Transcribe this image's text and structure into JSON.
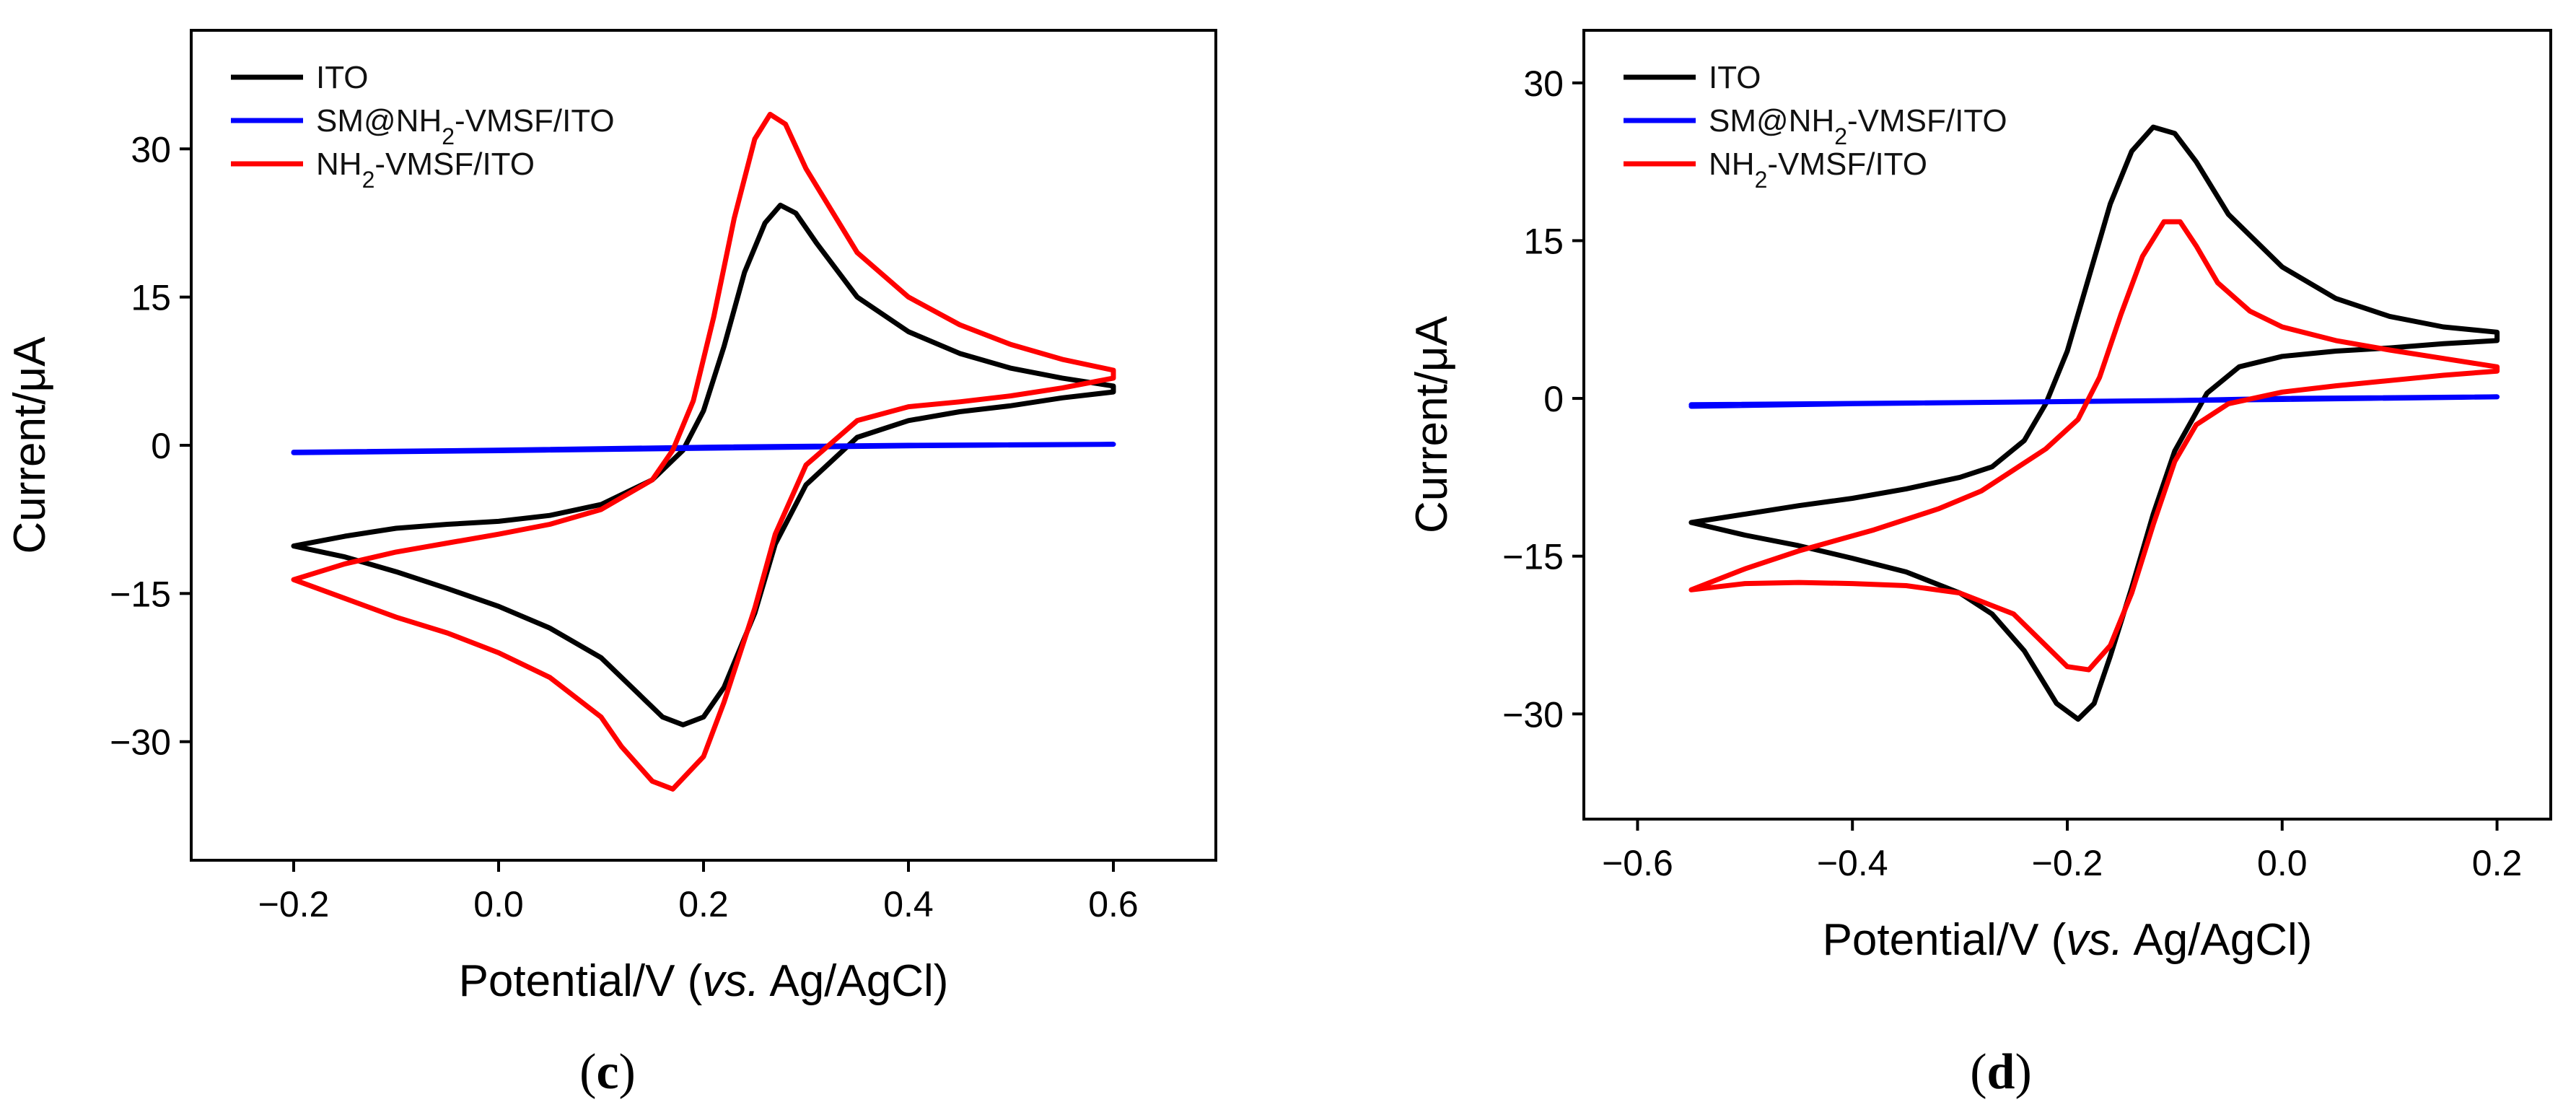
{
  "chart_data": [
    {
      "type": "line",
      "panel_label": "c",
      "xlabel_main": "Potential/V (",
      "xlabel_italic": "vs.",
      "xlabel_tail": " Ag/AgCl)",
      "ylabel": "Current/μA",
      "xlim": [
        -0.3,
        0.7
      ],
      "ylim": [
        -42,
        42
      ],
      "xticks": [
        -0.2,
        0.0,
        0.2,
        0.4,
        0.6
      ],
      "xtick_labels": [
        "−0.2",
        "0.0",
        "0.2",
        "0.4",
        "0.6"
      ],
      "yticks": [
        -30,
        -15,
        0,
        15,
        30
      ],
      "ytick_labels": [
        "−30",
        "−15",
        "0",
        "15",
        "30"
      ],
      "legend_position": "top-left",
      "series": [
        {
          "name": "ITO",
          "name_parts": [
            {
              "t": "ITO"
            }
          ],
          "color": "#000000",
          "points": [
            [
              -0.2,
              -10.2
            ],
            [
              -0.15,
              -9.2
            ],
            [
              -0.1,
              -8.4
            ],
            [
              -0.05,
              -8.0
            ],
            [
              0.0,
              -7.7
            ],
            [
              0.05,
              -7.1
            ],
            [
              0.1,
              -6.0
            ],
            [
              0.15,
              -3.5
            ],
            [
              0.18,
              -0.5
            ],
            [
              0.2,
              3.5
            ],
            [
              0.22,
              10.0
            ],
            [
              0.24,
              17.5
            ],
            [
              0.26,
              22.5
            ],
            [
              0.275,
              24.3
            ],
            [
              0.29,
              23.5
            ],
            [
              0.31,
              20.5
            ],
            [
              0.35,
              15.0
            ],
            [
              0.4,
              11.5
            ],
            [
              0.45,
              9.3
            ],
            [
              0.5,
              7.8
            ],
            [
              0.55,
              6.8
            ],
            [
              0.6,
              6.0
            ],
            [
              0.6,
              5.4
            ],
            [
              0.55,
              4.8
            ],
            [
              0.5,
              4.0
            ],
            [
              0.45,
              3.4
            ],
            [
              0.4,
              2.5
            ],
            [
              0.35,
              0.8
            ],
            [
              0.3,
              -4.0
            ],
            [
              0.27,
              -10.0
            ],
            [
              0.25,
              -17.0
            ],
            [
              0.22,
              -24.5
            ],
            [
              0.2,
              -27.5
            ],
            [
              0.18,
              -28.3
            ],
            [
              0.16,
              -27.5
            ],
            [
              0.13,
              -24.5
            ],
            [
              0.1,
              -21.5
            ],
            [
              0.05,
              -18.5
            ],
            [
              0.0,
              -16.3
            ],
            [
              -0.05,
              -14.5
            ],
            [
              -0.1,
              -12.8
            ],
            [
              -0.15,
              -11.3
            ],
            [
              -0.2,
              -10.2
            ]
          ]
        },
        {
          "name": "SM@NH2-VMSF/ITO",
          "name_parts": [
            {
              "t": "SM@NH"
            },
            {
              "t": "2",
              "sub": true
            },
            {
              "t": "-VMSF/ITO"
            }
          ],
          "color": "#0000ff",
          "points": [
            [
              -0.2,
              -0.7
            ],
            [
              0.0,
              -0.5
            ],
            [
              0.2,
              -0.2
            ],
            [
              0.4,
              0.0
            ],
            [
              0.6,
              0.1
            ],
            [
              0.4,
              -0.05
            ],
            [
              0.2,
              -0.3
            ],
            [
              0.0,
              -0.55
            ],
            [
              -0.2,
              -0.75
            ]
          ]
        },
        {
          "name": "NH2-VMSF/ITO",
          "name_parts": [
            {
              "t": "NH"
            },
            {
              "t": "2",
              "sub": true
            },
            {
              "t": "-VMSF/ITO"
            }
          ],
          "color": "#ff0000",
          "points": [
            [
              -0.2,
              -13.6
            ],
            [
              -0.15,
              -12.0
            ],
            [
              -0.1,
              -10.8
            ],
            [
              -0.05,
              -9.9
            ],
            [
              0.0,
              -9.0
            ],
            [
              0.05,
              -8.0
            ],
            [
              0.1,
              -6.5
            ],
            [
              0.15,
              -3.5
            ],
            [
              0.17,
              -0.5
            ],
            [
              0.19,
              4.5
            ],
            [
              0.21,
              13.0
            ],
            [
              0.23,
              23.0
            ],
            [
              0.25,
              31.0
            ],
            [
              0.265,
              33.5
            ],
            [
              0.28,
              32.5
            ],
            [
              0.3,
              28.0
            ],
            [
              0.35,
              19.5
            ],
            [
              0.4,
              15.0
            ],
            [
              0.45,
              12.2
            ],
            [
              0.5,
              10.2
            ],
            [
              0.55,
              8.7
            ],
            [
              0.6,
              7.6
            ],
            [
              0.6,
              6.8
            ],
            [
              0.55,
              5.8
            ],
            [
              0.5,
              5.0
            ],
            [
              0.45,
              4.4
            ],
            [
              0.4,
              3.9
            ],
            [
              0.35,
              2.5
            ],
            [
              0.3,
              -2.0
            ],
            [
              0.27,
              -9.0
            ],
            [
              0.25,
              -16.5
            ],
            [
              0.22,
              -26.0
            ],
            [
              0.2,
              -31.5
            ],
            [
              0.17,
              -34.8
            ],
            [
              0.15,
              -34.0
            ],
            [
              0.12,
              -30.5
            ],
            [
              0.1,
              -27.5
            ],
            [
              0.05,
              -23.5
            ],
            [
              0.0,
              -21.0
            ],
            [
              -0.05,
              -19.0
            ],
            [
              -0.1,
              -17.4
            ],
            [
              -0.15,
              -15.5
            ],
            [
              -0.2,
              -13.6
            ]
          ]
        }
      ]
    },
    {
      "type": "line",
      "panel_label": "d",
      "xlabel_main": "Potential/V (",
      "xlabel_italic": "vs.",
      "xlabel_tail": " Ag/AgCl)",
      "ylabel": "Current/μA",
      "xlim": [
        -0.65,
        0.25
      ],
      "ylim": [
        -40,
        35
      ],
      "xticks": [
        -0.6,
        -0.4,
        -0.2,
        0.0,
        0.2
      ],
      "xtick_labels": [
        "−0.6",
        "−0.4",
        "−0.2",
        "0.0",
        "0.2"
      ],
      "yticks": [
        -30,
        -15,
        0,
        15,
        30
      ],
      "ytick_labels": [
        "−30",
        "−15",
        "0",
        "15",
        "30"
      ],
      "legend_position": "top-left",
      "series": [
        {
          "name": "ITO",
          "name_parts": [
            {
              "t": "ITO"
            }
          ],
          "color": "#000000",
          "points": [
            [
              -0.55,
              -11.8
            ],
            [
              -0.5,
              -11.0
            ],
            [
              -0.45,
              -10.2
            ],
            [
              -0.4,
              -9.5
            ],
            [
              -0.35,
              -8.6
            ],
            [
              -0.3,
              -7.5
            ],
            [
              -0.27,
              -6.5
            ],
            [
              -0.24,
              -4.0
            ],
            [
              -0.22,
              -0.5
            ],
            [
              -0.2,
              4.5
            ],
            [
              -0.18,
              11.5
            ],
            [
              -0.16,
              18.5
            ],
            [
              -0.14,
              23.5
            ],
            [
              -0.12,
              25.8
            ],
            [
              -0.1,
              25.2
            ],
            [
              -0.08,
              22.5
            ],
            [
              -0.05,
              17.5
            ],
            [
              0.0,
              12.5
            ],
            [
              0.05,
              9.5
            ],
            [
              0.1,
              7.8
            ],
            [
              0.15,
              6.8
            ],
            [
              0.2,
              6.3
            ],
            [
              0.2,
              5.5
            ],
            [
              0.15,
              5.2
            ],
            [
              0.1,
              4.8
            ],
            [
              0.05,
              4.5
            ],
            [
              0.0,
              4.0
            ],
            [
              -0.04,
              3.0
            ],
            [
              -0.07,
              0.5
            ],
            [
              -0.1,
              -5.0
            ],
            [
              -0.12,
              -11.0
            ],
            [
              -0.14,
              -18.0
            ],
            [
              -0.16,
              -24.5
            ],
            [
              -0.175,
              -29.0
            ],
            [
              -0.19,
              -30.5
            ],
            [
              -0.21,
              -29.0
            ],
            [
              -0.24,
              -24.0
            ],
            [
              -0.27,
              -20.5
            ],
            [
              -0.3,
              -18.5
            ],
            [
              -0.35,
              -16.5
            ],
            [
              -0.4,
              -15.2
            ],
            [
              -0.45,
              -14.0
            ],
            [
              -0.5,
              -13.0
            ],
            [
              -0.55,
              -11.8
            ]
          ]
        },
        {
          "name": "SM@NH2-VMSF/ITO",
          "name_parts": [
            {
              "t": "SM@NH"
            },
            {
              "t": "2",
              "sub": true
            },
            {
              "t": "-VMSF/ITO"
            }
          ],
          "color": "#0000ff",
          "points": [
            [
              -0.55,
              -0.6
            ],
            [
              -0.3,
              -0.4
            ],
            [
              -0.1,
              -0.2
            ],
            [
              0.0,
              0.0
            ],
            [
              0.2,
              0.15
            ],
            [
              0.0,
              -0.1
            ],
            [
              -0.2,
              -0.3
            ],
            [
              -0.4,
              -0.5
            ],
            [
              -0.55,
              -0.75
            ]
          ]
        },
        {
          "name": "NH2-VMSF/ITO",
          "name_parts": [
            {
              "t": "NH"
            },
            {
              "t": "2",
              "sub": true
            },
            {
              "t": "-VMSF/ITO"
            }
          ],
          "color": "#ff0000",
          "points": [
            [
              -0.55,
              -18.2
            ],
            [
              -0.5,
              -17.6
            ],
            [
              -0.45,
              -17.5
            ],
            [
              -0.4,
              -17.6
            ],
            [
              -0.35,
              -17.8
            ],
            [
              -0.3,
              -18.5
            ],
            [
              -0.25,
              -20.5
            ],
            [
              -0.22,
              -23.5
            ],
            [
              -0.2,
              -25.5
            ],
            [
              -0.18,
              -25.8
            ],
            [
              -0.16,
              -23.5
            ],
            [
              -0.14,
              -18.5
            ],
            [
              -0.12,
              -12.0
            ],
            [
              -0.1,
              -6.0
            ],
            [
              -0.08,
              -2.5
            ],
            [
              -0.05,
              -0.5
            ],
            [
              0.0,
              0.6
            ],
            [
              0.05,
              1.2
            ],
            [
              0.1,
              1.7
            ],
            [
              0.15,
              2.2
            ],
            [
              0.2,
              2.6
            ],
            [
              0.2,
              3.0
            ],
            [
              0.15,
              3.8
            ],
            [
              0.1,
              4.6
            ],
            [
              0.05,
              5.5
            ],
            [
              0.0,
              6.8
            ],
            [
              -0.03,
              8.3
            ],
            [
              -0.06,
              11.0
            ],
            [
              -0.08,
              14.5
            ],
            [
              -0.095,
              16.8
            ],
            [
              -0.11,
              16.8
            ],
            [
              -0.13,
              13.5
            ],
            [
              -0.15,
              8.0
            ],
            [
              -0.17,
              2.0
            ],
            [
              -0.19,
              -2.0
            ],
            [
              -0.22,
              -4.8
            ],
            [
              -0.25,
              -6.8
            ],
            [
              -0.28,
              -8.8
            ],
            [
              -0.32,
              -10.5
            ],
            [
              -0.38,
              -12.5
            ],
            [
              -0.45,
              -14.5
            ],
            [
              -0.5,
              -16.2
            ],
            [
              -0.55,
              -18.2
            ]
          ]
        }
      ]
    }
  ]
}
